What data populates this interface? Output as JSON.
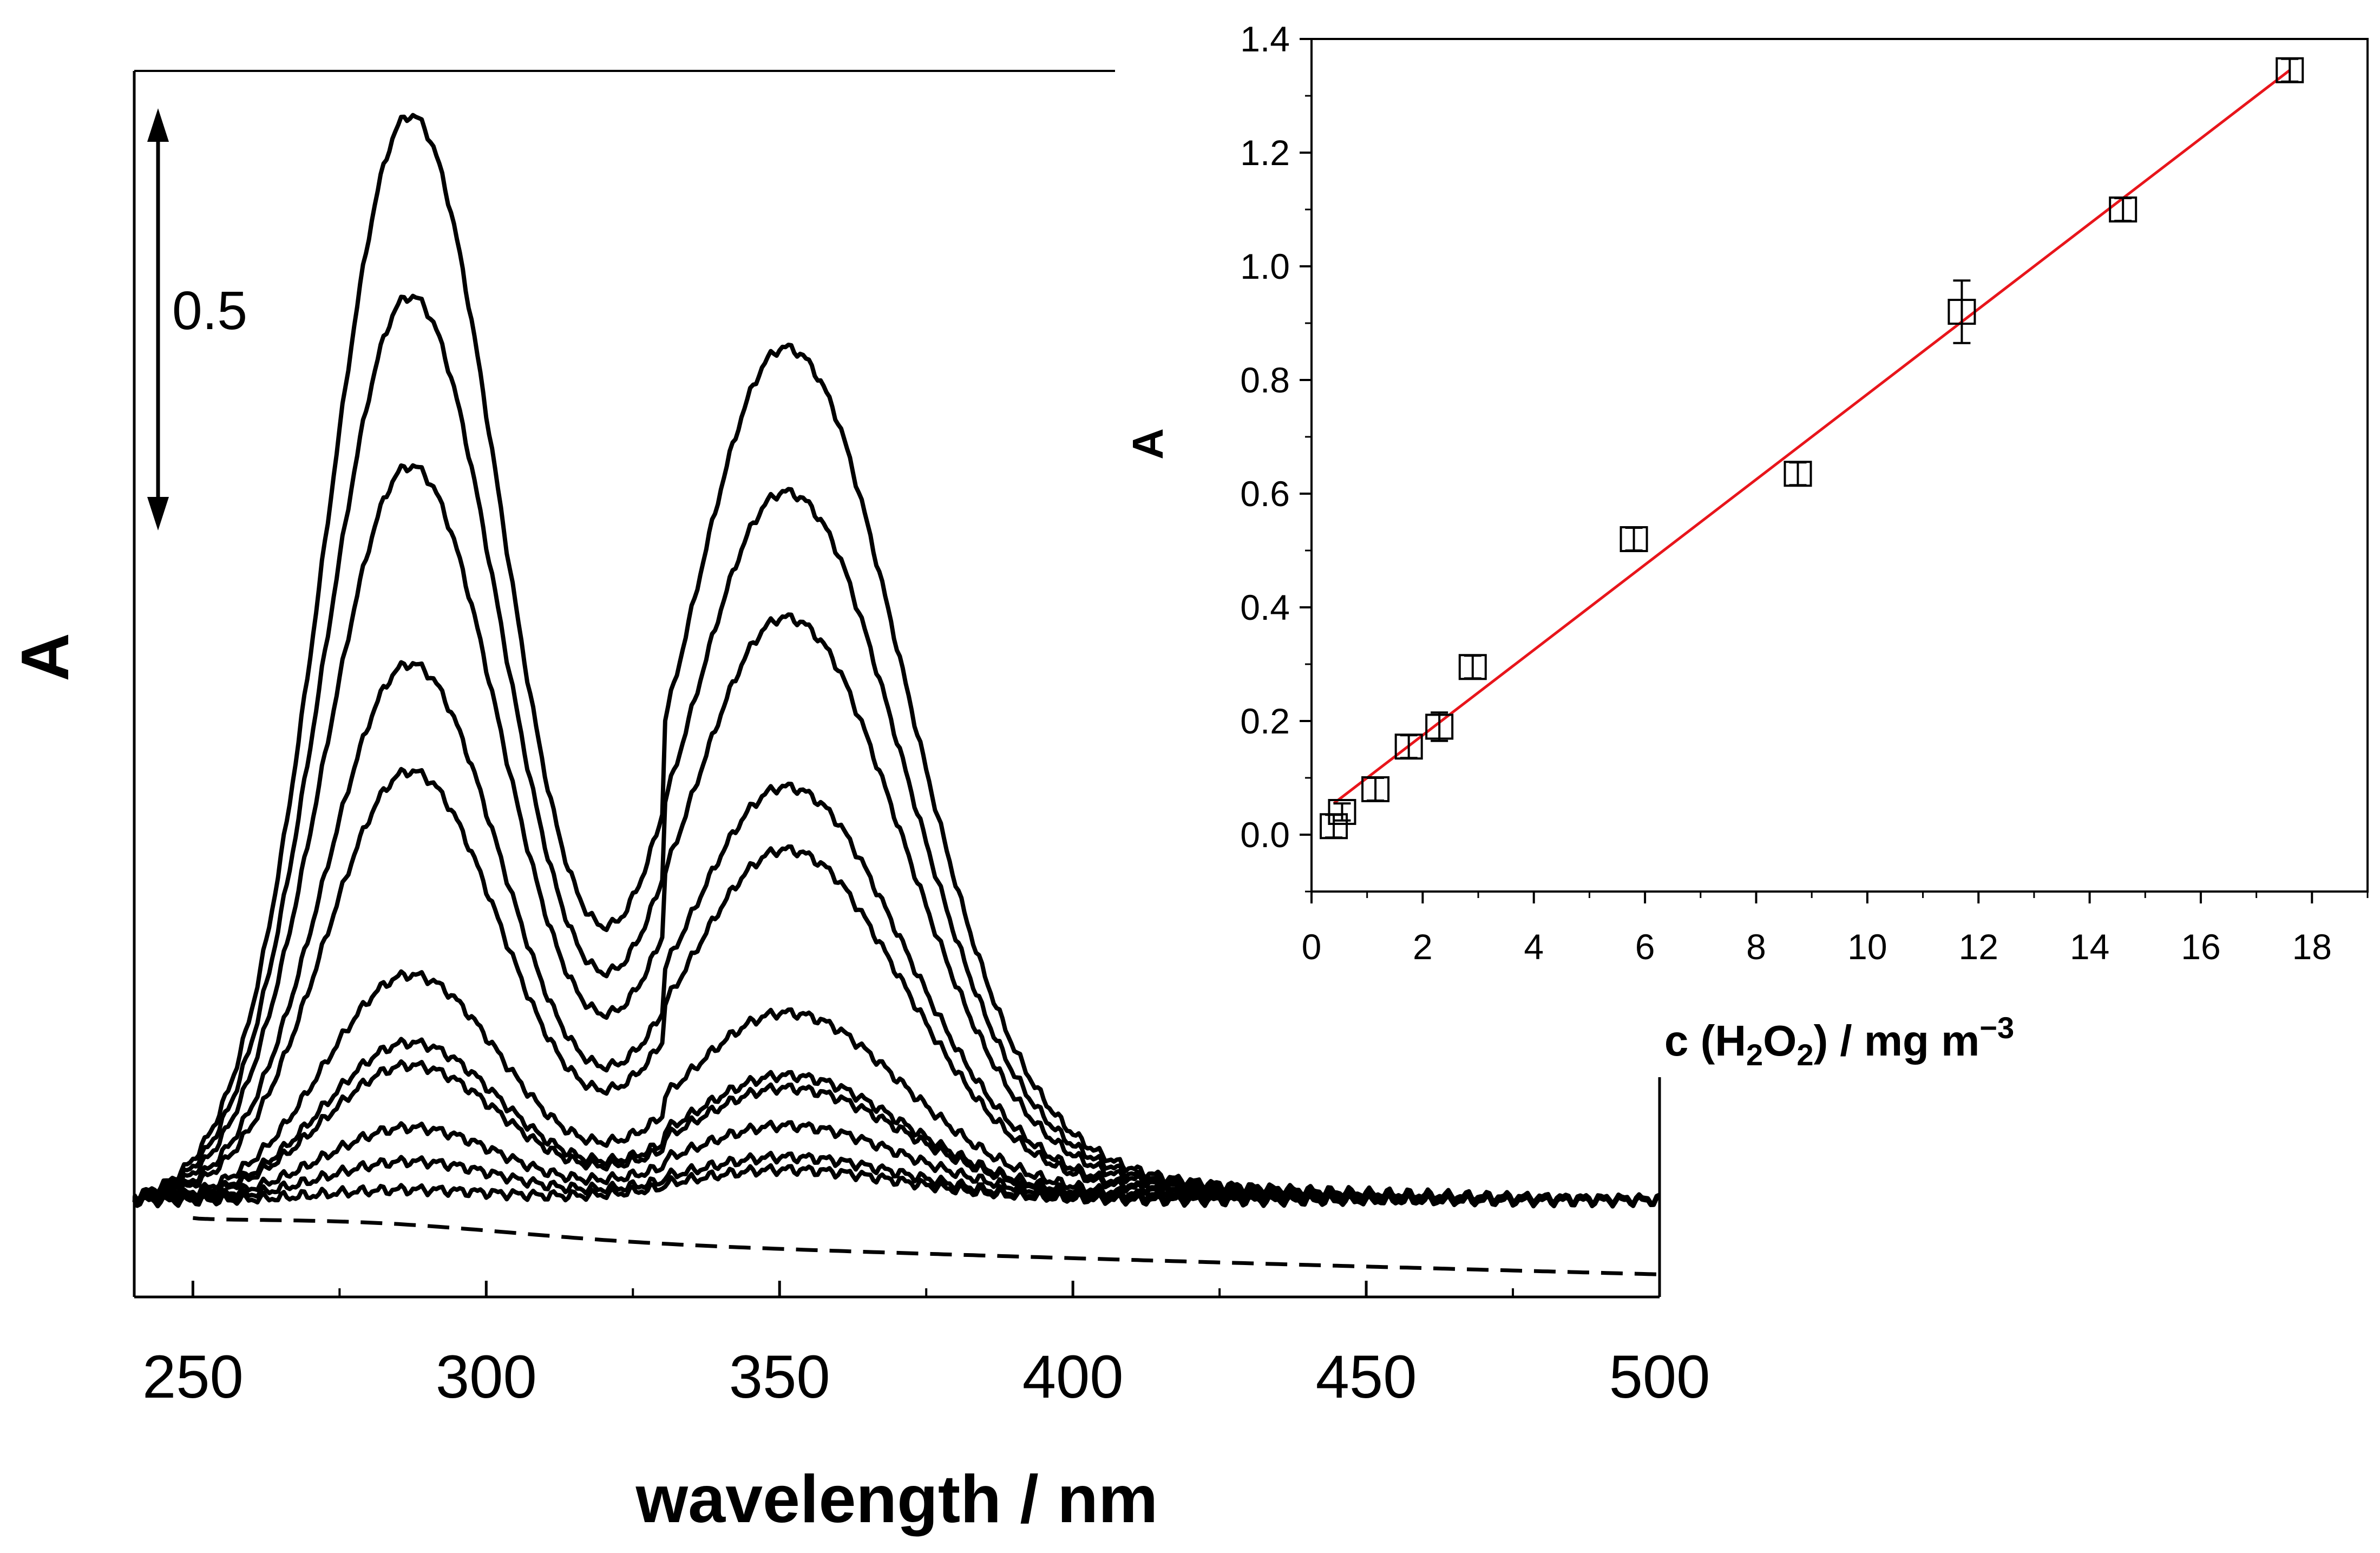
{
  "chart_data": [
    {
      "type": "line",
      "title": "",
      "xlabel": "wavelength / nm",
      "ylabel": "A",
      "xlim": [
        240,
        500
      ],
      "ylim": [
        -0.17,
        2.0
      ],
      "xticks": [
        250,
        300,
        350,
        400,
        450,
        500
      ],
      "xtick_labels": [
        "250",
        "300",
        "350",
        "400",
        "450",
        "500"
      ],
      "scale_bar": {
        "label": "0.5",
        "value": 0.5,
        "from_y": 1.05,
        "to_y": 1.9
      },
      "spectra": [
        {
          "name": "spectrum-1",
          "peak1": 1.92,
          "peak2": 1.36,
          "style": "solid"
        },
        {
          "name": "spectrum-2",
          "peak1": 1.6,
          "peak2": 1.13,
          "style": "solid"
        },
        {
          "name": "spectrum-3",
          "peak1": 1.3,
          "peak2": 0.93,
          "style": "solid"
        },
        {
          "name": "spectrum-4",
          "peak1": 0.95,
          "peak2": 0.66,
          "style": "solid"
        },
        {
          "name": "spectrum-5",
          "peak1": 0.76,
          "peak2": 0.56,
          "style": "solid"
        },
        {
          "name": "spectrum-6",
          "peak1": 0.4,
          "peak2": 0.3,
          "style": "solid"
        },
        {
          "name": "spectrum-7",
          "peak1": 0.28,
          "peak2": 0.2,
          "style": "solid"
        },
        {
          "name": "spectrum-8",
          "peak1": 0.24,
          "peak2": 0.18,
          "style": "solid"
        },
        {
          "name": "spectrum-9",
          "peak1": 0.13,
          "peak2": 0.12,
          "style": "solid"
        },
        {
          "name": "spectrum-10",
          "peak1": 0.07,
          "peak2": 0.07,
          "style": "solid"
        },
        {
          "name": "spectrum-11",
          "peak1": 0.02,
          "peak2": 0.05,
          "style": "solid"
        }
      ],
      "dashed_baseline": {
        "name": "blank-baseline",
        "start_x": 250,
        "end_x": 500,
        "y_start": -0.04,
        "y_end": -0.13,
        "style": "dashed"
      }
    },
    {
      "type": "scatter",
      "title": "",
      "xlabel_prefix": "c (H",
      "xlabel_sub1": "2",
      "xlabel_mid": "O",
      "xlabel_sub2": "2",
      "xlabel_suffix": ") / mg m",
      "xlabel_sup": "−3",
      "ylabel": "A",
      "xlim": [
        0,
        19
      ],
      "ylim": [
        -0.1,
        1.4
      ],
      "xticks": [
        0,
        2,
        4,
        6,
        8,
        10,
        12,
        14,
        16,
        18
      ],
      "xtick_labels": [
        "0",
        "2",
        "4",
        "6",
        "8",
        "10",
        "12",
        "14",
        "16",
        "18"
      ],
      "yticks": [
        0.0,
        0.2,
        0.4,
        0.6,
        0.8,
        1.0,
        1.2,
        1.4
      ],
      "ytick_labels": [
        "0.0",
        "0.2",
        "0.4",
        "0.6",
        "0.8",
        "1.0",
        "1.2",
        "1.4"
      ],
      "points": [
        {
          "x": 0.4,
          "y": 0.015,
          "err": 0.02
        },
        {
          "x": 0.55,
          "y": 0.04,
          "err": 0.015
        },
        {
          "x": 1.15,
          "y": 0.08,
          "err": 0.02
        },
        {
          "x": 1.75,
          "y": 0.155,
          "err": 0.02
        },
        {
          "x": 2.3,
          "y": 0.19,
          "err": 0.025
        },
        {
          "x": 2.9,
          "y": 0.295,
          "err": 0.02
        },
        {
          "x": 5.8,
          "y": 0.52,
          "err": 0.02
        },
        {
          "x": 8.75,
          "y": 0.635,
          "err": 0.02
        },
        {
          "x": 11.7,
          "y": 0.92,
          "err": 0.055
        },
        {
          "x": 14.6,
          "y": 1.1,
          "err": 0.02
        },
        {
          "x": 17.6,
          "y": 1.345,
          "err": 0.02
        }
      ],
      "fit_line": {
        "color": "#e8151b",
        "x_start": 0.4,
        "x_end": 17.6,
        "y_start": 0.055,
        "y_end": 1.345
      }
    }
  ]
}
